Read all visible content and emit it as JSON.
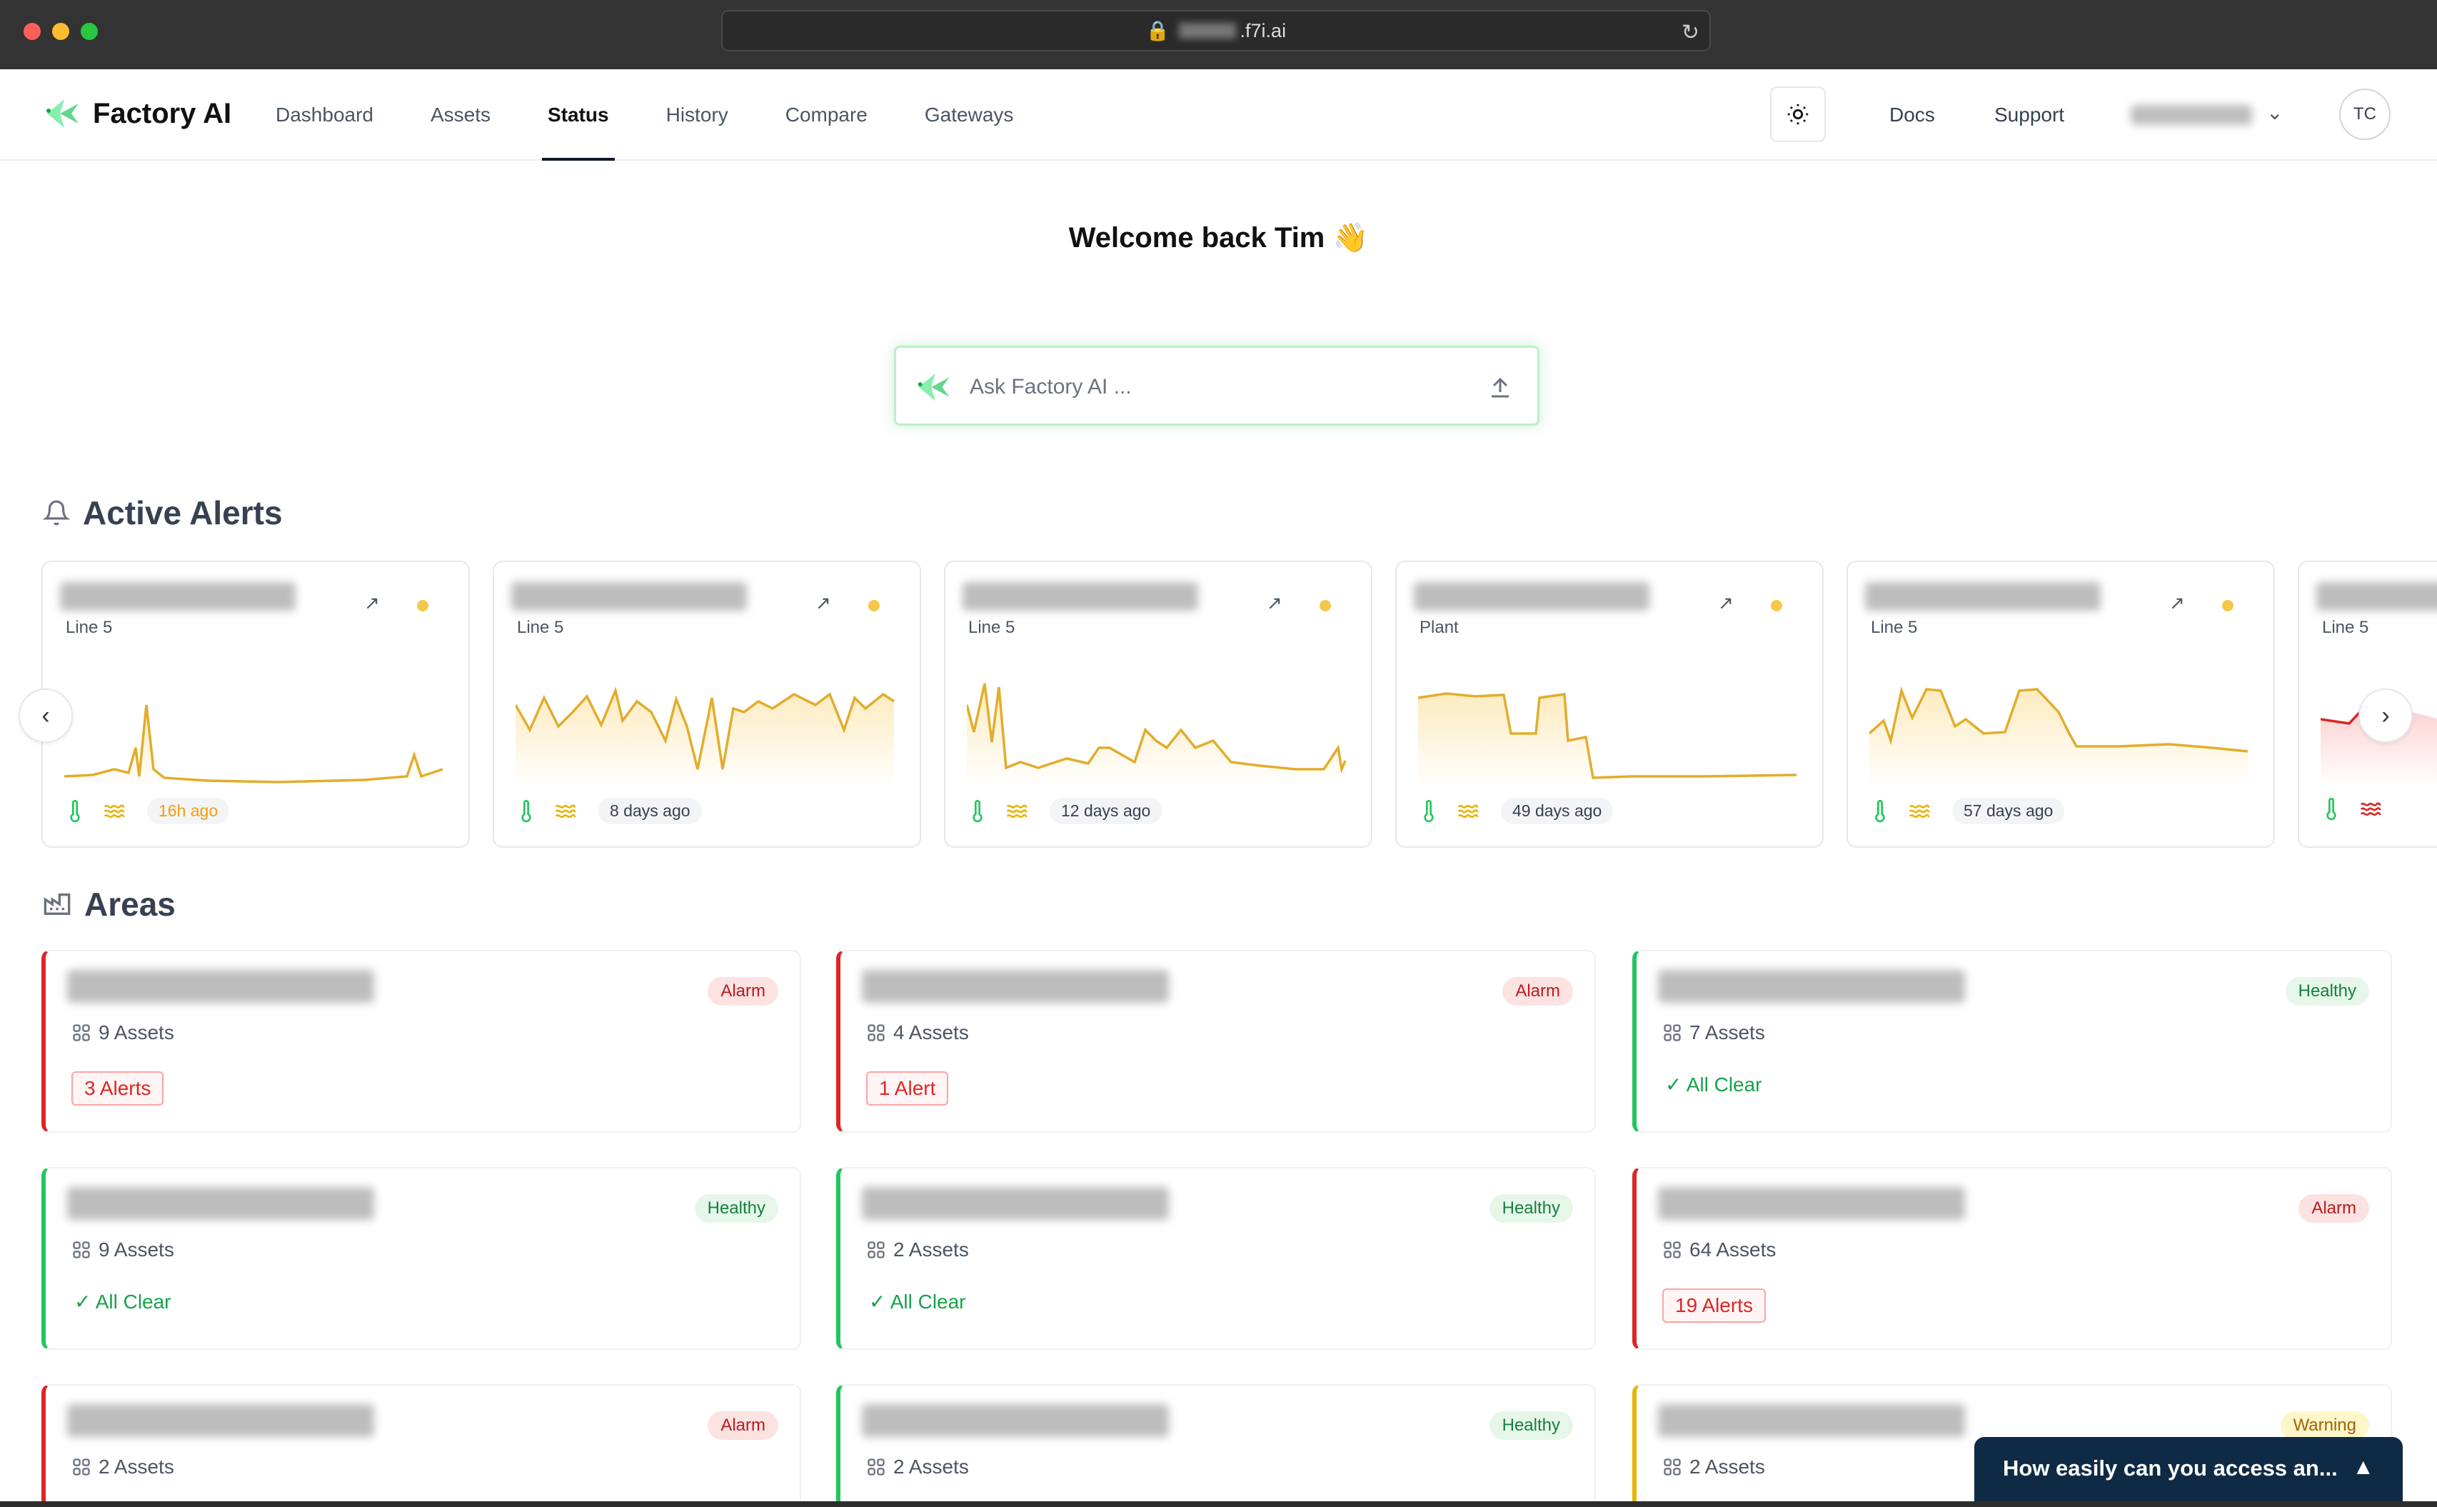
{
  "browser": {
    "url": ".f7i.ai"
  },
  "app": {
    "name": "Factory AI"
  },
  "nav": {
    "items": [
      {
        "label": "Dashboard"
      },
      {
        "label": "Assets"
      },
      {
        "label": "Status"
      },
      {
        "label": "History"
      },
      {
        "label": "Compare"
      },
      {
        "label": "Gateways"
      }
    ],
    "active": "Status"
  },
  "header": {
    "docs": "Docs",
    "support": "Support",
    "avatar_initials": "TC"
  },
  "welcome": "Welcome back Tim 👋",
  "ask": {
    "placeholder": "Ask Factory AI ..."
  },
  "active_alerts": {
    "title": "Active Alerts",
    "cards": [
      {
        "location": "Line 5",
        "time": "16h ago"
      },
      {
        "location": "Line 5",
        "time": "8 days ago"
      },
      {
        "location": "Line 5",
        "time": "12 days ago"
      },
      {
        "location": "Plant",
        "time": "49 days ago"
      },
      {
        "location": "Line 5",
        "time": "57 days ago"
      },
      {
        "location": "Line 5",
        "time": ""
      }
    ]
  },
  "areas": {
    "title": "Areas",
    "cards": [
      {
        "status": "Alarm",
        "assets": "9 Assets",
        "alerts": "3 Alerts"
      },
      {
        "status": "Alarm",
        "assets": "4 Assets",
        "alerts": "1 Alert"
      },
      {
        "status": "Healthy",
        "assets": "7 Assets",
        "alerts": "All Clear"
      },
      {
        "status": "Healthy",
        "assets": "9 Assets",
        "alerts": "All Clear"
      },
      {
        "status": "Healthy",
        "assets": "2 Assets",
        "alerts": "All Clear"
      },
      {
        "status": "Alarm",
        "assets": "64 Assets",
        "alerts": "19 Alerts"
      },
      {
        "status": "Alarm",
        "assets": "2 Assets",
        "alerts": ""
      },
      {
        "status": "Healthy",
        "assets": "2 Assets",
        "alerts": ""
      },
      {
        "status": "Warning",
        "assets": "2 Assets",
        "alerts": ""
      }
    ]
  },
  "survey": {
    "text": "How easily can you access an..."
  },
  "colors": {
    "accent": "#22c55e",
    "alarm": "#dc2626",
    "warning": "#eab308",
    "sparkline": "#e2ad2c"
  }
}
